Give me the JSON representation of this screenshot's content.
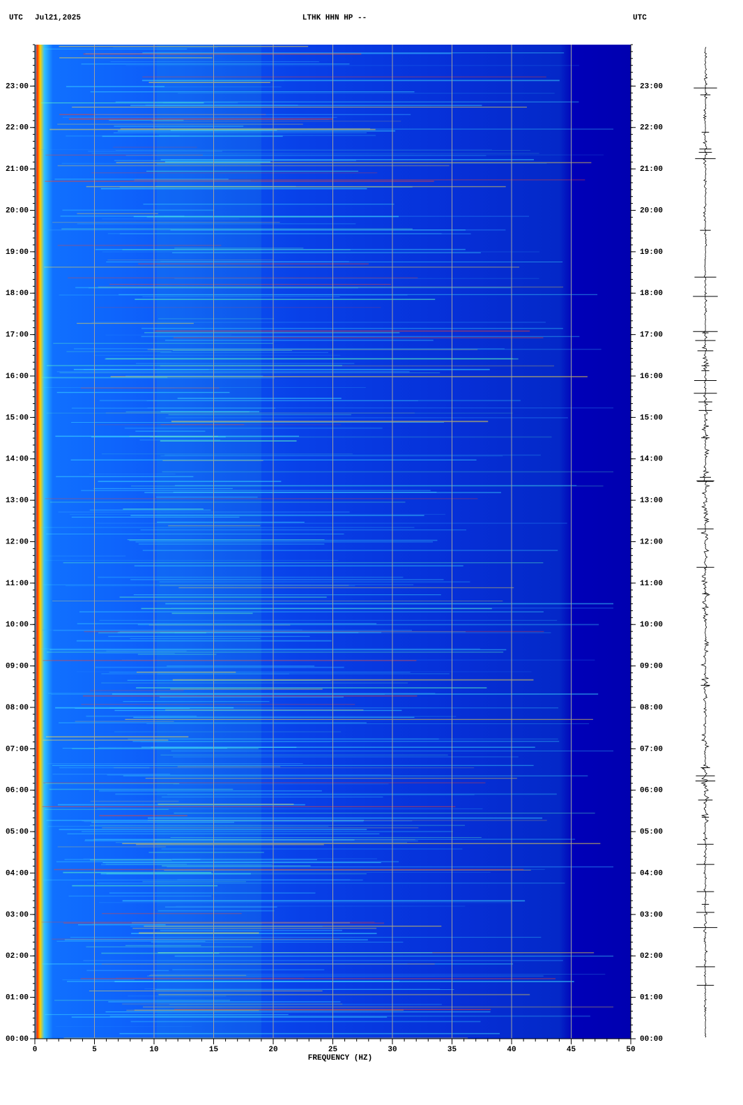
{
  "chart_data": {
    "type": "spectrogram",
    "time_zone_left": "UTC",
    "date": "Jul21,2025",
    "title": "LTHK HHN HP --",
    "time_zone_right": "UTC",
    "xlabel": "FREQUENCY (HZ)",
    "xlim": [
      0,
      50
    ],
    "xticks": [
      0,
      5,
      10,
      15,
      20,
      25,
      30,
      35,
      40,
      45,
      50
    ],
    "ylim": [
      0,
      24
    ],
    "yticks": [
      {
        "value": 0,
        "label": "00:00"
      },
      {
        "value": 1,
        "label": "01:00"
      },
      {
        "value": 2,
        "label": "02:00"
      },
      {
        "value": 3,
        "label": "03:00"
      },
      {
        "value": 4,
        "label": "04:00"
      },
      {
        "value": 5,
        "label": "05:00"
      },
      {
        "value": 6,
        "label": "06:00"
      },
      {
        "value": 7,
        "label": "07:00"
      },
      {
        "value": 8,
        "label": "08:00"
      },
      {
        "value": 9,
        "label": "09:00"
      },
      {
        "value": 10,
        "label": "10:00"
      },
      {
        "value": 11,
        "label": "11:00"
      },
      {
        "value": 12,
        "label": "12:00"
      },
      {
        "value": 13,
        "label": "13:00"
      },
      {
        "value": 14,
        "label": "14:00"
      },
      {
        "value": 15,
        "label": "15:00"
      },
      {
        "value": 16,
        "label": "16:00"
      },
      {
        "value": 17,
        "label": "17:00"
      },
      {
        "value": 18,
        "label": "18:00"
      },
      {
        "value": 19,
        "label": "19:00"
      },
      {
        "value": 20,
        "label": "20:00"
      },
      {
        "value": 21,
        "label": "21:00"
      },
      {
        "value": 22,
        "label": "22:00"
      },
      {
        "value": 23,
        "label": "23:00"
      }
    ],
    "grid": true,
    "grid_color": "#a0a0a0"
  }
}
